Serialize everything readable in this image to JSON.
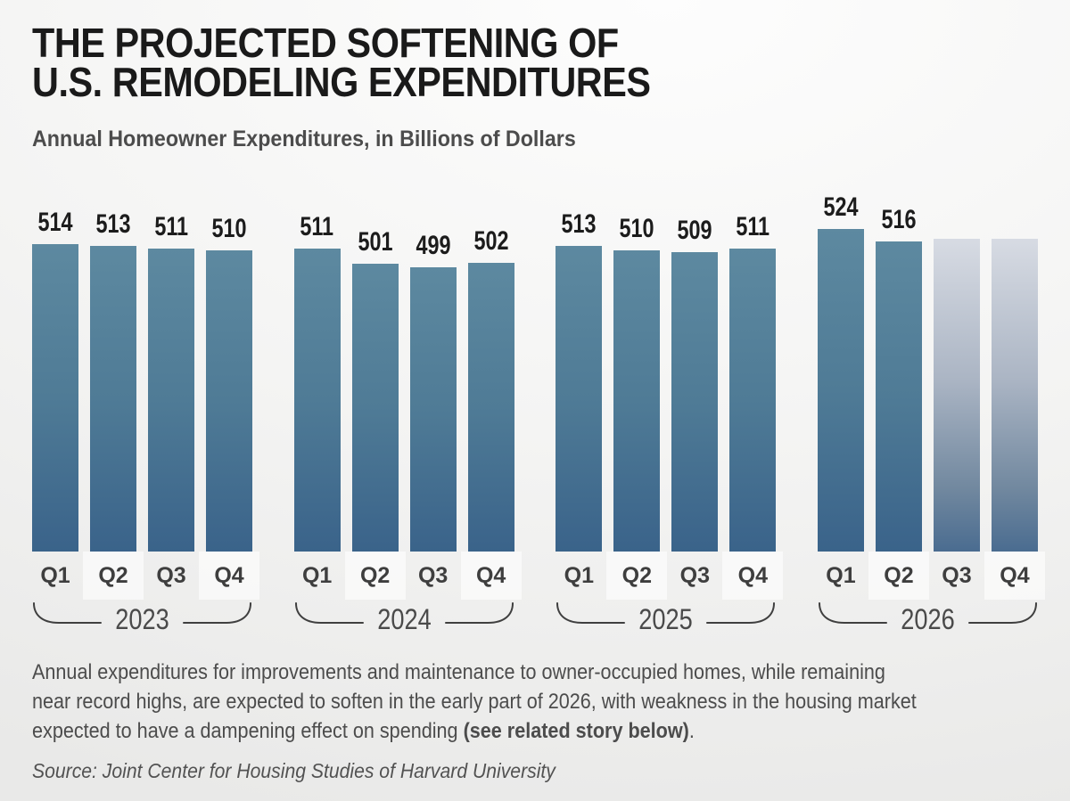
{
  "header": {
    "title_lines": [
      "THE PROJECTED SOFTENING OF",
      "U.S. REMODELING EXPENDITURES"
    ],
    "subtitle": "Annual Homeowner Expenditures, in Billions of Dollars"
  },
  "chart_data": {
    "type": "bar",
    "title": "THE PROJECTED SOFTENING OF U.S. REMODELING EXPENDITURES",
    "subtitle": "Annual Homeowner Expenditures, in Billions of Dollars",
    "unit": "billions of dollars, annual rate",
    "grid": false,
    "legend_position": "none",
    "ylim_implied": [
      310,
      540
    ],
    "groups": [
      {
        "year": "2023",
        "quarters": [
          "Q1",
          "Q2",
          "Q3",
          "Q4"
        ],
        "values": [
          514,
          513,
          511,
          510
        ],
        "projected": [
          false,
          false,
          false,
          false
        ]
      },
      {
        "year": "2024",
        "quarters": [
          "Q1",
          "Q2",
          "Q3",
          "Q4"
        ],
        "values": [
          511,
          501,
          499,
          502
        ],
        "projected": [
          false,
          false,
          false,
          false
        ]
      },
      {
        "year": "2025",
        "quarters": [
          "Q1",
          "Q2",
          "Q3",
          "Q4"
        ],
        "values": [
          513,
          510,
          509,
          511
        ],
        "projected": [
          false,
          false,
          false,
          false
        ]
      },
      {
        "year": "2026",
        "quarters": [
          "Q1",
          "Q2",
          "Q3",
          "Q4"
        ],
        "values": [
          524,
          516,
          null,
          null
        ],
        "projected": [
          false,
          false,
          true,
          true
        ],
        "unlabeled_bar_estimated_value": 517.5,
        "note": "Q3 and Q4 2026 bars are unlabeled projections rendered as faded gray-to-blue bars"
      }
    ]
  },
  "footer": {
    "para_line1": "Annual expenditures for improvements and maintenance to owner-occupied homes, while remaining",
    "para_line2": "near record highs, are expected to soften in the early part of 2026, with weakness in the housing market",
    "para_line3_pre": "expected to have a dampening effect on spending ",
    "para_line3_bold": "(see related story below)",
    "para_line3_post": ".",
    "source": "Source: Joint Center for Housing Studies of Harvard University"
  },
  "colors": {
    "background_top": "#fdfdfd",
    "background_bottom": "#e9e9e8",
    "bar_top": "#5d89a0",
    "bar_mid": "#4f7b96",
    "bar_bottom": "#3a638a",
    "projected_bar_top": "#d7dbe3",
    "projected_bar_mid": "#abb5c4",
    "projected_bar_low": "#71889f",
    "projected_bar_bottom": "#4a6c90",
    "title_text": "#1a1a1a",
    "body_text": "#4c4c4c",
    "bracket_line": "#3f3f3f",
    "quarter_box": "rgba(255,255,255,0.6)"
  }
}
